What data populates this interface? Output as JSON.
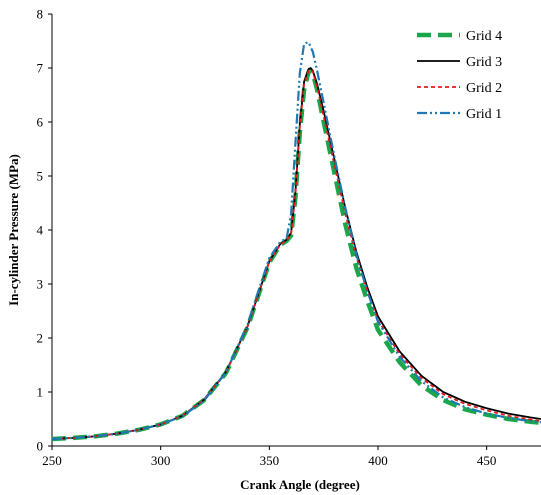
{
  "chart_data": {
    "type": "line",
    "xlabel": "Crank Angle (degree)",
    "ylabel": "In-cylinder  Pressure  (MPa)",
    "xlim": [
      250,
      475
    ],
    "ylim": [
      0,
      8
    ],
    "xticks": [
      250,
      300,
      350,
      400,
      450
    ],
    "yticks": [
      0,
      1,
      2,
      3,
      4,
      5,
      6,
      7,
      8
    ],
    "legend_position": "top-right",
    "grid": false,
    "series": [
      {
        "name": "Grid 4",
        "color": "#1aa64a",
        "style": "long-dash-thick",
        "x": [
          250,
          260,
          270,
          280,
          290,
          300,
          310,
          320,
          330,
          340,
          345,
          350,
          355,
          358,
          360,
          362,
          364,
          366,
          368,
          369,
          370,
          372,
          375,
          380,
          385,
          390,
          395,
          400,
          410,
          420,
          430,
          440,
          450,
          460,
          470,
          475
        ],
        "y": [
          0.13,
          0.15,
          0.18,
          0.23,
          0.3,
          0.4,
          0.56,
          0.85,
          1.35,
          2.2,
          2.8,
          3.4,
          3.72,
          3.8,
          3.9,
          4.6,
          5.8,
          6.6,
          6.92,
          6.95,
          6.9,
          6.6,
          6.0,
          5.05,
          4.1,
          3.3,
          2.7,
          2.15,
          1.55,
          1.12,
          0.85,
          0.68,
          0.58,
          0.5,
          0.45,
          0.43
        ]
      },
      {
        "name": "Grid 3",
        "color": "#000000",
        "style": "solid",
        "x": [
          250,
          260,
          270,
          280,
          290,
          300,
          310,
          320,
          330,
          340,
          345,
          350,
          355,
          358,
          360,
          362,
          364,
          366,
          368,
          369,
          370,
          372,
          375,
          380,
          385,
          390,
          395,
          400,
          410,
          420,
          430,
          440,
          450,
          460,
          470,
          475
        ],
        "y": [
          0.13,
          0.15,
          0.18,
          0.23,
          0.3,
          0.4,
          0.56,
          0.86,
          1.37,
          2.22,
          2.82,
          3.42,
          3.74,
          3.82,
          3.95,
          4.7,
          5.95,
          6.75,
          6.98,
          7.0,
          6.95,
          6.7,
          6.2,
          5.3,
          4.4,
          3.6,
          2.95,
          2.4,
          1.75,
          1.3,
          1.0,
          0.82,
          0.7,
          0.6,
          0.53,
          0.5
        ]
      },
      {
        "name": "Grid 2",
        "color": "#e31a1c",
        "style": "short-dash",
        "x": [
          250,
          260,
          270,
          280,
          290,
          300,
          310,
          320,
          330,
          340,
          345,
          350,
          355,
          358,
          360,
          362,
          364,
          366,
          368,
          369,
          370,
          372,
          375,
          380,
          385,
          390,
          395,
          400,
          410,
          420,
          430,
          440,
          450,
          460,
          470,
          475
        ],
        "y": [
          0.13,
          0.15,
          0.18,
          0.23,
          0.3,
          0.4,
          0.56,
          0.86,
          1.36,
          2.21,
          2.81,
          3.41,
          3.73,
          3.81,
          3.93,
          4.65,
          5.9,
          6.7,
          6.95,
          6.97,
          6.93,
          6.65,
          6.1,
          5.2,
          4.3,
          3.5,
          2.88,
          2.33,
          1.7,
          1.26,
          0.96,
          0.78,
          0.66,
          0.56,
          0.49,
          0.46
        ]
      },
      {
        "name": "Grid 1",
        "color": "#1f78b4",
        "style": "dash-dot-dot",
        "x": [
          250,
          260,
          270,
          280,
          290,
          300,
          310,
          320,
          330,
          340,
          345,
          350,
          355,
          358,
          360,
          362,
          364,
          366,
          368,
          370,
          372,
          375,
          380,
          385,
          390,
          395,
          400,
          410,
          420,
          430,
          440,
          450,
          460,
          470,
          475
        ],
        "y": [
          0.13,
          0.15,
          0.18,
          0.23,
          0.3,
          0.4,
          0.55,
          0.84,
          1.36,
          2.25,
          2.88,
          3.48,
          3.78,
          3.85,
          4.3,
          5.6,
          6.9,
          7.45,
          7.48,
          7.3,
          6.95,
          6.35,
          5.35,
          4.4,
          3.55,
          2.88,
          2.3,
          1.65,
          1.2,
          0.9,
          0.72,
          0.6,
          0.52,
          0.46,
          0.44
        ]
      }
    ]
  }
}
